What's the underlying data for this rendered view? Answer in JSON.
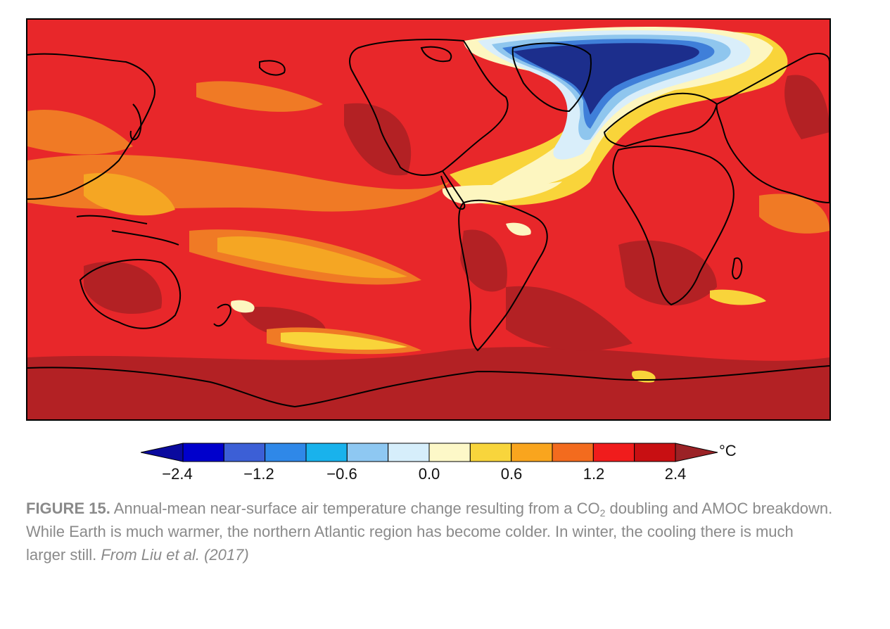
{
  "map": {
    "colors": {
      "ocean_base": "#e8272a",
      "warm_dark": "#b32124",
      "warm_orange": "#f07a25",
      "warm_gold": "#f5a623",
      "warm_yellow": "#f9d43a",
      "pale_yellow": "#fdf6c0",
      "pale_blue": "#d9eefa",
      "light_blue": "#8fc6ee",
      "mid_blue": "#3f7fd9",
      "dark_blue": "#1c2e8c",
      "coastline": "#000000"
    }
  },
  "colorbar": {
    "bins": [
      "#0a0a9e",
      "#0000cc",
      "#3c5fd6",
      "#2f88e8",
      "#19b2ec",
      "#8ec8f2",
      "#d6eefb",
      "#fdf8c8",
      "#f8d53c",
      "#f9a51e",
      "#f36b1e",
      "#f01c1c",
      "#c80f12",
      "#9b2226"
    ],
    "ticks": [
      "−2.4",
      "−1.2",
      "−0.6",
      "0.0",
      "0.6",
      "1.2",
      "2.4"
    ],
    "unit": "°C"
  },
  "caption": {
    "label": "FIGURE 15.",
    "text_before": " Annual-mean near-surface air temperature change resulting from a CO",
    "subscript": "2",
    "text_after": " doubling and AMOC breakdown. While Earth is much warmer, the northern Atlantic region has become colder. In winter, the cooling there is much larger still. ",
    "citation": "From Liu et al. (2017)"
  }
}
